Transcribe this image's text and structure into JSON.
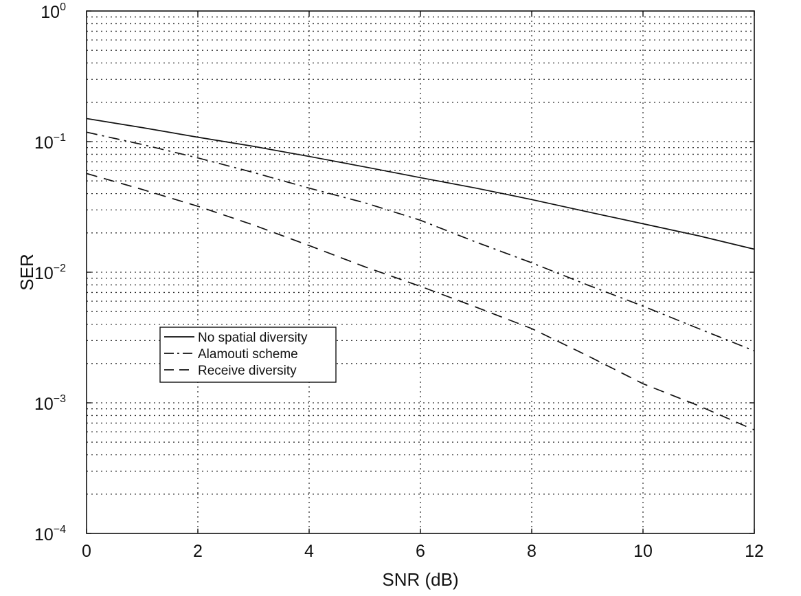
{
  "chart_data": {
    "type": "line",
    "title": "",
    "xlabel": "SNR (dB)",
    "ylabel": "SER",
    "xlim": [
      0,
      12
    ],
    "ylim": [
      0.0001,
      1
    ],
    "yscale": "log",
    "grid": true,
    "grid_style": "dotted",
    "legend_position": "center-left",
    "x_ticks": [
      0,
      2,
      4,
      6,
      8,
      10,
      12
    ],
    "x_tick_labels": [
      "0",
      "2",
      "4",
      "6",
      "8",
      "10",
      "12"
    ],
    "y_ticks": [
      0.0001,
      0.001,
      0.01,
      0.1,
      1
    ],
    "y_tick_labels": [
      {
        "base": "10",
        "exp": "−4"
      },
      {
        "base": "10",
        "exp": "−3"
      },
      {
        "base": "10",
        "exp": "−2"
      },
      {
        "base": "10",
        "exp": "−1"
      },
      {
        "base": "10",
        "exp": "0"
      }
    ],
    "series": [
      {
        "name": "No spatial diversity",
        "style": "solid",
        "x": [
          0,
          1,
          2,
          3,
          4,
          5,
          6,
          7,
          8,
          9,
          10,
          11,
          12
        ],
        "values": [
          0.15,
          0.128,
          0.108,
          0.092,
          0.077,
          0.064,
          0.053,
          0.044,
          0.036,
          0.029,
          0.0235,
          0.019,
          0.015
        ]
      },
      {
        "name": "Alamouti scheme",
        "style": "dashdot",
        "x": [
          0,
          1,
          2,
          3,
          4,
          5,
          6,
          7,
          8,
          9,
          10,
          11,
          12
        ],
        "values": [
          0.118,
          0.095,
          0.075,
          0.058,
          0.044,
          0.034,
          0.025,
          0.017,
          0.0118,
          0.008,
          0.0055,
          0.0037,
          0.0025
        ]
      },
      {
        "name": "Receive diversity",
        "style": "dashed",
        "x": [
          0,
          1,
          2,
          3,
          4,
          5,
          6,
          7,
          8,
          9,
          10,
          11,
          12
        ],
        "values": [
          0.057,
          0.043,
          0.032,
          0.023,
          0.016,
          0.011,
          0.0078,
          0.0054,
          0.0037,
          0.0023,
          0.0014,
          0.00095,
          0.00062
        ]
      }
    ]
  }
}
